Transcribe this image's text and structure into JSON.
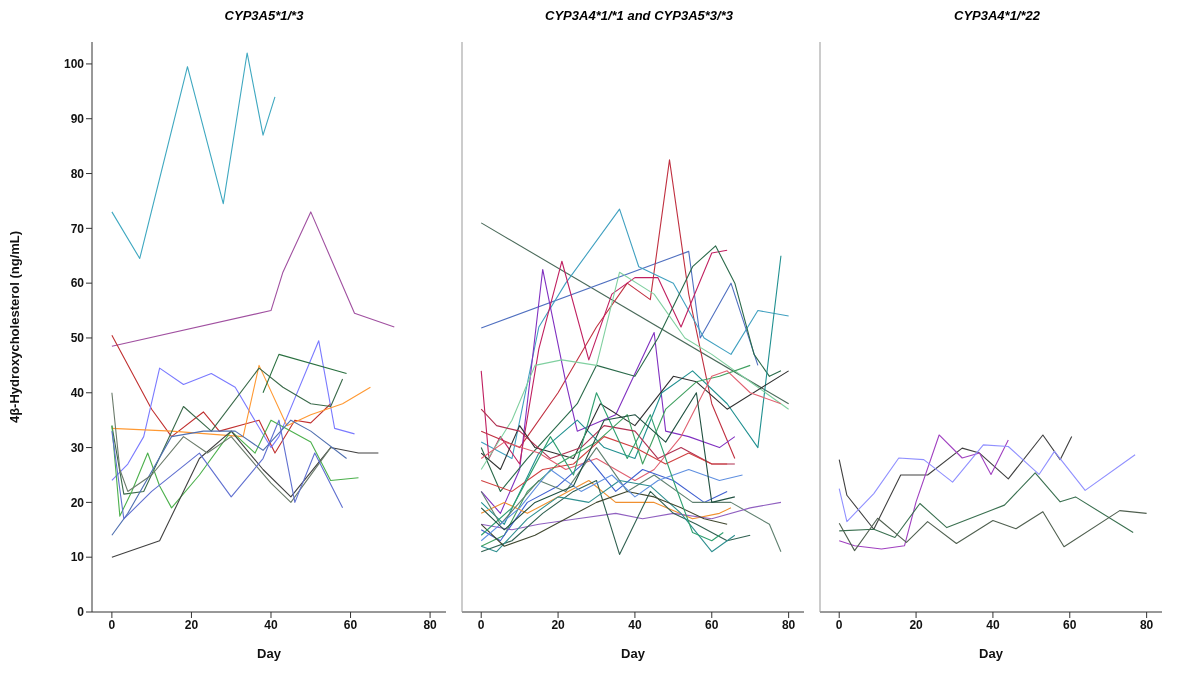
{
  "chart_data": [
    {
      "type": "line",
      "title": "CYP3A5*1/*3",
      "xlabel": "Day",
      "ylabel": "4β-Hydroxycholesterol (ng/mL)",
      "xlim": [
        -5,
        84
      ],
      "xticks": [
        0,
        20,
        40,
        60,
        80
      ],
      "ylim": [
        0,
        104
      ],
      "yticks": [
        0,
        10,
        20,
        30,
        40,
        50,
        60,
        70,
        80,
        90,
        100
      ],
      "series": [
        {
          "color": "#3fa8c0",
          "x": [
            0,
            7,
            19,
            28,
            34,
            38,
            41
          ],
          "values": [
            73,
            64.5,
            99.5,
            74.5,
            102,
            87,
            94
          ]
        },
        {
          "color": "#a050a0",
          "x": [
            0,
            40,
            43,
            50,
            61,
            71
          ],
          "values": [
            48.5,
            55,
            62,
            73,
            54.5,
            52
          ]
        },
        {
          "color": "#c03030",
          "x": [
            0,
            10,
            15,
            23,
            27,
            37,
            41,
            46,
            50,
            55
          ],
          "values": [
            50.5,
            37,
            32,
            36.5,
            33,
            35,
            29,
            35,
            34.5,
            38
          ]
        },
        {
          "color": "#7a7aff",
          "x": [
            0,
            4,
            8,
            12,
            18,
            25,
            31,
            40,
            42,
            52,
            56,
            61
          ],
          "values": [
            24,
            27,
            32,
            44.5,
            41.5,
            43.5,
            41,
            30,
            32,
            49.5,
            33.5,
            32.5
          ]
        },
        {
          "color": "#ff9933",
          "x": [
            0,
            15,
            33,
            37,
            44,
            50,
            58,
            65
          ],
          "values": [
            33.5,
            33,
            32,
            45,
            34,
            36,
            38,
            41
          ]
        },
        {
          "color": "#3a6a4a",
          "x": [
            0,
            3,
            8,
            18,
            25,
            37,
            43,
            50,
            55,
            58
          ],
          "values": [
            34,
            21.5,
            22,
            37.5,
            33,
            44.5,
            41,
            38,
            37.5,
            42.5
          ]
        },
        {
          "color": "#4cb04c",
          "x": [
            0,
            2,
            5,
            9,
            12,
            15,
            22,
            30,
            36,
            40,
            50,
            55,
            62
          ],
          "values": [
            34,
            17.5,
            22,
            29,
            23,
            19,
            25,
            33,
            29,
            35,
            31,
            24,
            24.5
          ]
        },
        {
          "color": "#404040",
          "x": [
            0,
            12,
            22,
            30,
            38,
            45,
            55,
            62,
            67
          ],
          "values": [
            10,
            13,
            28,
            33,
            26,
            21,
            30,
            29,
            29
          ]
        },
        {
          "color": "#5070b0",
          "x": [
            0,
            4,
            15,
            23,
            31,
            38,
            45,
            50,
            59
          ],
          "values": [
            14,
            18,
            32,
            33,
            33,
            29.5,
            35,
            33,
            28
          ]
        },
        {
          "color": "#6a7a6a",
          "x": [
            0,
            2,
            4,
            10,
            18,
            24,
            30,
            40,
            45,
            55
          ],
          "values": [
            40,
            26,
            22,
            25,
            32,
            29,
            32,
            23.5,
            20,
            30
          ]
        },
        {
          "color": "#6070d0",
          "x": [
            0,
            3,
            10,
            22,
            30,
            38,
            42,
            46,
            51,
            58
          ],
          "values": [
            33,
            17,
            22,
            29,
            21,
            28,
            35,
            20,
            29,
            19
          ]
        },
        {
          "color": "#2a7040",
          "x": [
            38,
            42,
            59
          ],
          "values": [
            40,
            47,
            43.5
          ]
        }
      ]
    },
    {
      "type": "line",
      "title": "CYP3A4*1/*1 and CYP3A5*3/*3",
      "xlabel": "Day",
      "xlim": [
        -5,
        84
      ],
      "xticks": [
        0,
        20,
        40,
        60,
        80
      ],
      "ylim": [
        0,
        104
      ],
      "yticks": [
        0,
        10,
        20,
        30,
        40,
        50,
        60,
        70,
        80,
        90,
        100
      ],
      "tick_labels": "x",
      "series": [
        {
          "color": "#4a6a5a",
          "x": [
            0,
            80
          ],
          "values": [
            71,
            38
          ]
        },
        {
          "color": "#5070c0",
          "x": [
            0,
            54,
            57,
            65,
            72
          ],
          "values": [
            51.8,
            65.8,
            50,
            60,
            45
          ]
        },
        {
          "color": "#c03040",
          "x": [
            0,
            10,
            20,
            30,
            38,
            44,
            49,
            54,
            60,
            66
          ],
          "values": [
            33,
            30,
            40,
            52,
            60,
            57,
            82.5,
            58,
            38,
            28
          ]
        },
        {
          "color": "#40a0c0",
          "x": [
            0,
            8,
            15,
            22,
            36,
            41,
            50,
            58,
            65,
            72,
            80
          ],
          "values": [
            31,
            28,
            52,
            60,
            73.5,
            63,
            60,
            50,
            47,
            55,
            54
          ]
        },
        {
          "color": "#8030c0",
          "x": [
            0,
            5,
            10,
            16,
            22,
            25,
            35,
            45,
            48,
            54,
            62,
            66
          ],
          "values": [
            22,
            18,
            26,
            62.5,
            42,
            33,
            36,
            51,
            33,
            32,
            30,
            32
          ]
        },
        {
          "color": "#c02060",
          "x": [
            0,
            2,
            5,
            10,
            15,
            21,
            28,
            34,
            40,
            46,
            52,
            60,
            64
          ],
          "values": [
            44,
            28,
            32,
            27,
            48,
            64,
            46,
            58,
            61,
            61,
            52,
            65.5,
            66
          ]
        },
        {
          "color": "#2a6a4a",
          "x": [
            0,
            5,
            12,
            25,
            30,
            40,
            46,
            55,
            61,
            66,
            71,
            75,
            78
          ],
          "values": [
            30,
            22,
            28,
            38,
            45,
            43,
            50,
            63,
            66.8,
            60,
            47,
            43,
            44
          ]
        },
        {
          "color": "#209090",
          "x": [
            0,
            6,
            15,
            25,
            32,
            40,
            47,
            55,
            64,
            72,
            78
          ],
          "values": [
            20,
            16,
            29,
            35,
            30,
            28,
            40,
            44,
            38,
            30,
            65
          ]
        },
        {
          "color": "#80d0a0",
          "x": [
            0,
            8,
            14,
            21,
            30,
            36,
            45,
            53,
            60,
            70,
            80
          ],
          "values": [
            26,
            35,
            45,
            46,
            45,
            62,
            58,
            50,
            47,
            42,
            37
          ]
        },
        {
          "color": "#303030",
          "x": [
            0,
            5,
            10,
            14,
            24,
            31,
            40,
            50,
            56,
            64,
            80
          ],
          "values": [
            29,
            26,
            34,
            30,
            28,
            38,
            34,
            43,
            42,
            37,
            44
          ]
        },
        {
          "color": "#40a060",
          "x": [
            0,
            6,
            12,
            20,
            30,
            38,
            42,
            48,
            56,
            62,
            70
          ],
          "values": [
            12,
            14,
            22,
            27,
            31,
            36,
            27,
            37,
            42,
            43,
            45
          ]
        },
        {
          "color": "#e06070",
          "x": [
            0,
            6,
            15,
            22,
            30,
            40,
            45,
            52,
            60,
            64,
            70,
            78
          ],
          "values": [
            28,
            31,
            29,
            26,
            28,
            24,
            26,
            32,
            43,
            44,
            40,
            38
          ]
        },
        {
          "color": "#4060d0",
          "x": [
            0,
            5,
            12,
            20,
            28,
            35,
            42,
            50,
            58,
            64
          ],
          "values": [
            15,
            13,
            20,
            23,
            28,
            22,
            26,
            24,
            20,
            22
          ]
        },
        {
          "color": "#f09030",
          "x": [
            0,
            6,
            12,
            20,
            28,
            35,
            45,
            55,
            62,
            65
          ],
          "values": [
            18,
            20,
            18,
            21,
            24,
            20,
            20,
            17,
            18,
            19
          ]
        },
        {
          "color": "#608070",
          "x": [
            0,
            5,
            15,
            22,
            30,
            38,
            45,
            55,
            65,
            75,
            78
          ],
          "values": [
            22,
            16,
            24,
            22,
            30,
            22,
            25,
            20,
            20,
            16,
            11
          ]
        },
        {
          "color": "#9060c0",
          "x": [
            0,
            8,
            15,
            25,
            35,
            42,
            50,
            60,
            70,
            78
          ],
          "values": [
            16,
            15,
            16,
            17,
            18,
            17,
            18,
            17,
            19,
            20
          ]
        },
        {
          "color": "#306050",
          "x": [
            0,
            8,
            16,
            24,
            30,
            36,
            44,
            50,
            56,
            64,
            70
          ],
          "values": [
            11,
            13,
            18,
            22,
            24,
            10.5,
            22,
            18,
            16,
            13,
            14
          ]
        },
        {
          "color": "#b03050",
          "x": [
            0,
            4,
            10,
            18,
            26,
            32,
            40,
            46,
            52,
            60,
            66
          ],
          "values": [
            37,
            34,
            33,
            28,
            30,
            34,
            33,
            28,
            30,
            27,
            27
          ]
        },
        {
          "color": "#309090",
          "x": [
            0,
            4,
            12,
            20,
            28,
            36,
            44,
            52,
            60,
            66
          ],
          "values": [
            12,
            11,
            17,
            21,
            20,
            24,
            23,
            18,
            11,
            14
          ]
        },
        {
          "color": "#404830",
          "x": [
            0,
            6,
            14,
            22,
            30,
            38,
            45,
            52,
            58,
            64
          ],
          "values": [
            16,
            12,
            14,
            17,
            20,
            22,
            21,
            19,
            17,
            16
          ]
        },
        {
          "color": "#6090e0",
          "x": [
            0,
            10,
            18,
            26,
            34,
            40,
            46,
            54,
            62,
            68
          ],
          "values": [
            13,
            19,
            26,
            22,
            25,
            21,
            24,
            26,
            24,
            25
          ]
        },
        {
          "color": "#d04040",
          "x": [
            0,
            8,
            16,
            24,
            32,
            40,
            48,
            54,
            60,
            64
          ],
          "values": [
            24,
            22,
            26,
            27,
            32,
            30,
            27,
            29,
            27,
            27
          ]
        },
        {
          "color": "#30a070",
          "x": [
            0,
            8,
            18,
            24,
            30,
            38,
            44,
            50,
            55,
            60,
            63
          ],
          "values": [
            14,
            19,
            32,
            25,
            40,
            28,
            36,
            24,
            14.5,
            13,
            14.5
          ]
        },
        {
          "color": "#205040",
          "x": [
            0,
            6,
            14,
            24,
            32,
            40,
            48,
            56,
            60,
            66
          ],
          "values": [
            19,
            15,
            20,
            23,
            35,
            36,
            31,
            40,
            20,
            21
          ]
        }
      ]
    },
    {
      "type": "line",
      "title": "CYP3A4*1/*22",
      "xlabel": "Day",
      "xlim": [
        -5,
        84
      ],
      "xticks": [
        0,
        20,
        40,
        60,
        80
      ],
      "ylim": [
        0,
        104
      ],
      "yticks": [
        0,
        10,
        20,
        30,
        40,
        50,
        60,
        70,
        80,
        90,
        100
      ],
      "tick_labels": "x",
      "series": [
        {
          "color": "#404040",
          "x": [
            0,
            2,
            9,
            16,
            23,
            32,
            36.5,
            44,
            53,
            57.5,
            60.5
          ],
          "values": [
            27.8,
            21.3,
            15.1,
            25,
            25,
            29.9,
            29,
            24.3,
            32.3,
            27.8,
            32
          ]
        },
        {
          "color": "#a040c0",
          "x": [
            0,
            4,
            11,
            17,
            20,
            26,
            32,
            36.5,
            39.5,
            44
          ],
          "values": [
            13,
            12.1,
            11.5,
            12.1,
            20.1,
            32.3,
            28.1,
            29,
            25.1,
            31.4
          ]
        },
        {
          "color": "#9090ff",
          "x": [
            0,
            2,
            9,
            15.5,
            22,
            29.5,
            37.5,
            44,
            52,
            56,
            64,
            77
          ],
          "values": [
            22.5,
            16.5,
            21.6,
            28.1,
            27.8,
            23.7,
            30.5,
            30.2,
            25.1,
            29.3,
            22.2,
            28.7
          ]
        },
        {
          "color": "#3a7050",
          "x": [
            0,
            9,
            14.5,
            21,
            28,
            43,
            51,
            57.5,
            61.5,
            76.5
          ],
          "values": [
            14.8,
            15.1,
            13.6,
            19.8,
            15.4,
            19.5,
            25.4,
            20.1,
            21,
            14.5
          ]
        },
        {
          "color": "#506050",
          "x": [
            0,
            4,
            10,
            17.5,
            23,
            30.5,
            40,
            46,
            53,
            58.5,
            73,
            80
          ],
          "values": [
            16.2,
            11.2,
            17.1,
            12.7,
            16.5,
            12.5,
            16.7,
            15.2,
            18.3,
            11.9,
            18.5,
            18
          ]
        }
      ]
    }
  ]
}
